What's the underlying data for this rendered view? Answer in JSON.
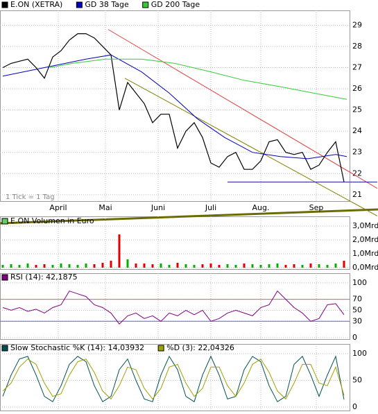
{
  "chart_data": [
    {
      "type": "line",
      "x": [
        0,
        3,
        6,
        9,
        12,
        15,
        18,
        21,
        24,
        27,
        30,
        33,
        36,
        39,
        42,
        45,
        48,
        51,
        54,
        57,
        60,
        63,
        66,
        69,
        72,
        75,
        78,
        81,
        84,
        87,
        90,
        93,
        96,
        99,
        102,
        105,
        108,
        111,
        114,
        117,
        120,
        123
      ],
      "xlim": [
        -1,
        125
      ],
      "xticks": [
        {
          "value": 20,
          "label": "April"
        },
        {
          "value": 37,
          "label": "Mai"
        },
        {
          "value": 56,
          "label": "Juni"
        },
        {
          "value": 75,
          "label": "Juli"
        },
        {
          "value": 93,
          "label": "Aug."
        },
        {
          "value": 113,
          "label": "Sep"
        }
      ],
      "ylim": [
        20.7,
        29.7
      ],
      "yticks": [
        21,
        22,
        23,
        24,
        25,
        26,
        27,
        28,
        29
      ],
      "grid": true,
      "annotation": "1 Tick = 1 Tag",
      "series": [
        {
          "name": "E.ON (XETRA)",
          "color": "#000000",
          "values": [
            27.0,
            27.2,
            27.3,
            27.4,
            27.0,
            26.5,
            27.5,
            27.8,
            28.3,
            28.6,
            28.6,
            28.4,
            28.0,
            27.6,
            25.0,
            26.3,
            25.8,
            25.3,
            24.4,
            24.8,
            24.8,
            23.2,
            24.0,
            24.4,
            23.7,
            22.5,
            22.3,
            22.8,
            23.0,
            22.2,
            22.2,
            22.6,
            23.5,
            23.6,
            23.0,
            22.9,
            23.0,
            22.2,
            22.4,
            23.0,
            23.5,
            21.6
          ]
        },
        {
          "name": "GD 38 Tage",
          "color": "#0000c0",
          "x": [
            0,
            15,
            30,
            39,
            50,
            60,
            70,
            80,
            90,
            100,
            110,
            120,
            124
          ],
          "values": [
            26.6,
            27.0,
            27.4,
            27.6,
            26.8,
            25.8,
            24.6,
            23.7,
            23.0,
            22.8,
            22.7,
            22.9,
            22.8
          ]
        },
        {
          "name": "GD 200 Tage",
          "color": "#33cc33",
          "x": [
            17,
            25,
            37,
            50,
            62,
            75,
            87,
            100,
            112,
            124
          ],
          "values": [
            27.0,
            27.2,
            27.4,
            27.4,
            27.2,
            26.8,
            26.4,
            26.1,
            25.8,
            25.5
          ]
        }
      ],
      "lines": [
        {
          "color": "#e04040",
          "x": [
            38,
            135
          ],
          "values": [
            28.8,
            21.3
          ]
        },
        {
          "color": "#808000",
          "x": [
            44,
            135
          ],
          "values": [
            26.5,
            20.0
          ]
        },
        {
          "color": "#2020a0",
          "x": [
            81,
            135
          ],
          "values": [
            21.6,
            21.6
          ]
        }
      ]
    },
    {
      "type": "bar",
      "title": "E.ON Volumen in Euro",
      "up_color": "#00b000",
      "down_color": "#e00000",
      "ylim": [
        -0.1,
        3.7
      ],
      "yticks": [
        {
          "value": 0,
          "label": "0,0Mrd"
        },
        {
          "value": 1,
          "label": "1,0Mrd"
        },
        {
          "value": 2,
          "label": "2,0Mrd"
        },
        {
          "value": 3,
          "label": "3,0Mrd"
        }
      ],
      "grid": true,
      "values": [
        0.2,
        0.25,
        0.2,
        0.3,
        0.2,
        0.25,
        0.2,
        0.3,
        0.25,
        0.2,
        0.3,
        0.25,
        0.35,
        0.5,
        2.4,
        0.6,
        0.3,
        0.3,
        0.25,
        0.3,
        0.2,
        0.35,
        0.25,
        0.2,
        0.25,
        0.3,
        0.2,
        0.25,
        0.2,
        0.3,
        0.25,
        0.2,
        0.25,
        0.3,
        0.2,
        0.25,
        0.2,
        0.3,
        0.25,
        0.2,
        0.3,
        0.5
      ]
    },
    {
      "type": "line",
      "ylim": [
        -2.5,
        117.5
      ],
      "yticks": [
        0,
        30,
        50,
        70,
        100
      ],
      "grid": true,
      "levels": [
        {
          "value": 70,
          "color": "#e06060"
        },
        {
          "value": 30,
          "color": "#6060d0"
        }
      ],
      "series": [
        {
          "name": "RSI (14): 42,1875",
          "color": "#800080",
          "values": [
            55,
            50,
            55,
            48,
            52,
            45,
            55,
            60,
            85,
            80,
            75,
            60,
            55,
            45,
            25,
            40,
            45,
            35,
            40,
            30,
            45,
            40,
            50,
            42,
            50,
            30,
            35,
            45,
            50,
            45,
            40,
            55,
            60,
            85,
            70,
            55,
            45,
            30,
            35,
            60,
            62,
            42
          ]
        }
      ]
    },
    {
      "type": "line",
      "ylim": [
        -6.5,
        118.2
      ],
      "yticks": [
        0,
        50,
        100
      ],
      "grid": true,
      "series": [
        {
          "name": "Slow Stochastic %K (14): 14,03932",
          "color": "#005050",
          "values": [
            20,
            60,
            90,
            95,
            60,
            20,
            10,
            40,
            80,
            95,
            85,
            40,
            10,
            20,
            70,
            90,
            50,
            15,
            10,
            60,
            95,
            70,
            20,
            10,
            60,
            95,
            60,
            15,
            20,
            70,
            95,
            85,
            40,
            10,
            20,
            80,
            95,
            60,
            20,
            60,
            95,
            14
          ]
        },
        {
          "name": "%D (3): 22,04326",
          "color": "#a0a000",
          "values": [
            30,
            45,
            75,
            90,
            80,
            45,
            20,
            25,
            60,
            85,
            90,
            65,
            30,
            15,
            40,
            75,
            70,
            35,
            15,
            35,
            75,
            80,
            45,
            20,
            35,
            75,
            75,
            40,
            20,
            45,
            80,
            90,
            65,
            30,
            15,
            45,
            80,
            80,
            45,
            40,
            75,
            22
          ]
        }
      ]
    }
  ]
}
